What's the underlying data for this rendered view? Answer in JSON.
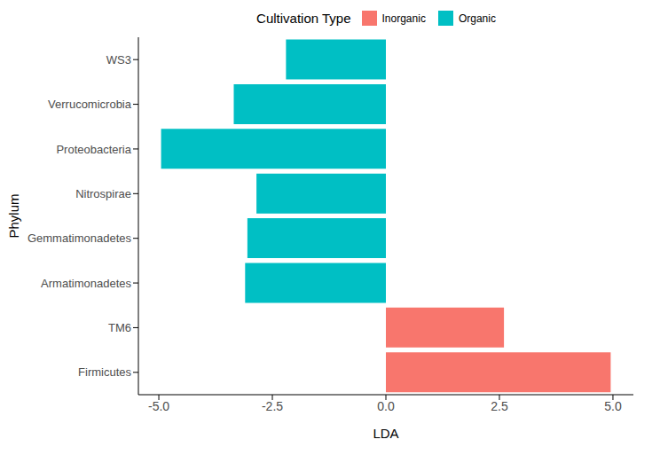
{
  "chart_data": {
    "type": "bar",
    "orientation": "horizontal",
    "stacked": true,
    "legend": "top",
    "legend_title": "Cultivation Type",
    "x_label": "LDA",
    "y_label": "Phylum",
    "categories": [
      "WS3",
      "Verrucomicrobia",
      "Proteobacteria",
      "Nitrospirae",
      "Gemmatimonadetes",
      "Armatimonadetes",
      "TM6",
      "Firmicutes"
    ],
    "series": [
      {
        "name": "Inorganic",
        "color": "#F8766D",
        "values": [
          null,
          null,
          null,
          null,
          null,
          null,
          2.6,
          4.95
        ]
      },
      {
        "name": "Organic",
        "color": "#00BFC4",
        "values": [
          -2.2,
          -3.35,
          -4.95,
          -2.85,
          -3.05,
          -3.1,
          null,
          null
        ]
      }
    ],
    "xlim": [
      -5.45,
      5.45
    ],
    "xticks": [
      {
        "value": -5,
        "label": "-5.0"
      },
      {
        "value": -2.5,
        "label": "-2.5"
      },
      {
        "value": 0,
        "label": "0.0"
      },
      {
        "value": 2.5,
        "label": "2.5"
      },
      {
        "value": 5,
        "label": "5.0"
      }
    ],
    "grid": false
  }
}
